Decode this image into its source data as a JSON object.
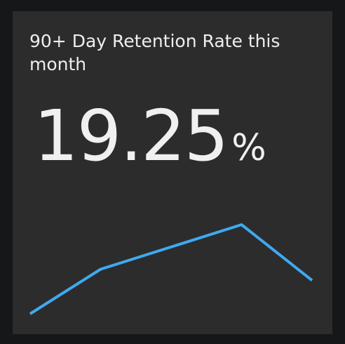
{
  "card": {
    "title": "90+ Day Retention Rate this month",
    "value": "19.25",
    "unit": "%"
  },
  "colors": {
    "background": "#161718",
    "card": "#2c2c2c",
    "text": "#eeeeee",
    "line": "#3fa9f0"
  },
  "chart_data": {
    "type": "line",
    "series": [
      {
        "values": [
          0,
          2,
          3,
          4,
          1.5
        ]
      }
    ]
  }
}
